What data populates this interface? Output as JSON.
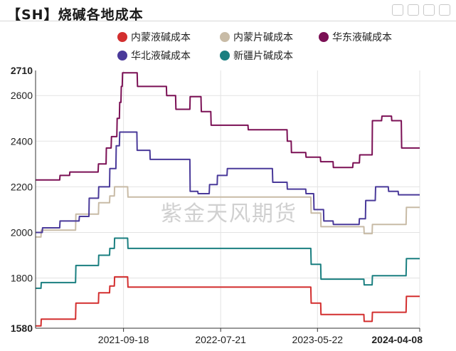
{
  "title": "【SH】烧碱各地成本",
  "watermark": "紫金天风期货",
  "chart_data": {
    "type": "line",
    "ylim": [
      1580,
      2710
    ],
    "y_ticks": [
      1580,
      1800,
      2000,
      2200,
      2400,
      2600,
      2710
    ],
    "x_range": [
      "2020-12-15",
      "2024-04-08"
    ],
    "x_ticks": [
      "2021-09-18",
      "2022-07-21",
      "2023-05-22",
      "2024-04-08"
    ],
    "grid": true,
    "legend_position": "top",
    "series": [
      {
        "name": "内蒙液碱成本",
        "color": "#d32f2f",
        "points": [
          [
            "2020-12-15",
            1590
          ],
          [
            "2021-01-01",
            1590
          ],
          [
            "2021-01-02",
            1620
          ],
          [
            "2021-04-20",
            1620
          ],
          [
            "2021-04-21",
            1690
          ],
          [
            "2021-07-01",
            1690
          ],
          [
            "2021-07-02",
            1735
          ],
          [
            "2021-08-05",
            1735
          ],
          [
            "2021-08-06",
            1765
          ],
          [
            "2021-08-20",
            1765
          ],
          [
            "2021-08-21",
            1805
          ],
          [
            "2021-10-01",
            1805
          ],
          [
            "2021-10-02",
            1760
          ],
          [
            "2023-05-01",
            1760
          ],
          [
            "2023-05-02",
            1690
          ],
          [
            "2023-06-01",
            1690
          ],
          [
            "2023-06-02",
            1640
          ],
          [
            "2023-10-15",
            1640
          ],
          [
            "2023-10-16",
            1610
          ],
          [
            "2023-11-10",
            1610
          ],
          [
            "2023-11-11",
            1650
          ],
          [
            "2024-02-25",
            1650
          ],
          [
            "2024-02-26",
            1720
          ],
          [
            "2024-04-08",
            1720
          ]
        ]
      },
      {
        "name": "内蒙片碱成本",
        "color": "#c8bba6",
        "points": [
          [
            "2020-12-15",
            1980
          ],
          [
            "2021-01-01",
            1980
          ],
          [
            "2021-01-02",
            2010
          ],
          [
            "2021-04-20",
            2010
          ],
          [
            "2021-04-21",
            2080
          ],
          [
            "2021-07-01",
            2080
          ],
          [
            "2021-07-02",
            2130
          ],
          [
            "2021-08-05",
            2130
          ],
          [
            "2021-08-06",
            2160
          ],
          [
            "2021-08-20",
            2160
          ],
          [
            "2021-08-21",
            2200
          ],
          [
            "2021-10-01",
            2200
          ],
          [
            "2021-10-02",
            2155
          ],
          [
            "2023-05-01",
            2155
          ],
          [
            "2023-05-02",
            2085
          ],
          [
            "2023-06-01",
            2085
          ],
          [
            "2023-06-02",
            2025
          ],
          [
            "2023-10-15",
            2025
          ],
          [
            "2023-10-16",
            1995
          ],
          [
            "2023-11-10",
            1995
          ],
          [
            "2023-11-11",
            2035
          ],
          [
            "2024-02-25",
            2035
          ],
          [
            "2024-02-26",
            2110
          ],
          [
            "2024-04-08",
            2110
          ]
        ]
      },
      {
        "name": "华东液碱成本",
        "color": "#7b1055",
        "points": [
          [
            "2020-12-15",
            2230
          ],
          [
            "2021-03-01",
            2230
          ],
          [
            "2021-03-02",
            2250
          ],
          [
            "2021-04-01",
            2250
          ],
          [
            "2021-04-02",
            2265
          ],
          [
            "2021-06-30",
            2265
          ],
          [
            "2021-07-01",
            2300
          ],
          [
            "2021-07-25",
            2300
          ],
          [
            "2021-07-26",
            2370
          ],
          [
            "2021-08-10",
            2370
          ],
          [
            "2021-08-11",
            2420
          ],
          [
            "2021-08-28",
            2420
          ],
          [
            "2021-08-29",
            2500
          ],
          [
            "2021-09-05",
            2500
          ],
          [
            "2021-09-06",
            2570
          ],
          [
            "2021-09-10",
            2570
          ],
          [
            "2021-09-11",
            2640
          ],
          [
            "2021-09-14",
            2640
          ],
          [
            "2021-09-15",
            2700
          ],
          [
            "2021-10-31",
            2700
          ],
          [
            "2021-11-01",
            2640
          ],
          [
            "2022-01-31",
            2640
          ],
          [
            "2022-02-01",
            2600
          ],
          [
            "2022-03-01",
            2600
          ],
          [
            "2022-03-02",
            2540
          ],
          [
            "2022-04-15",
            2540
          ],
          [
            "2022-04-16",
            2595
          ],
          [
            "2022-05-20",
            2595
          ],
          [
            "2022-05-21",
            2530
          ],
          [
            "2022-06-20",
            2530
          ],
          [
            "2022-06-21",
            2470
          ],
          [
            "2022-10-15",
            2470
          ],
          [
            "2022-10-16",
            2450
          ],
          [
            "2023-02-15",
            2450
          ],
          [
            "2023-02-16",
            2400
          ],
          [
            "2023-02-28",
            2400
          ],
          [
            "2023-03-01",
            2350
          ],
          [
            "2023-04-15",
            2350
          ],
          [
            "2023-04-16",
            2330
          ],
          [
            "2023-05-31",
            2330
          ],
          [
            "2023-06-01",
            2310
          ],
          [
            "2023-07-10",
            2310
          ],
          [
            "2023-07-11",
            2285
          ],
          [
            "2023-09-10",
            2285
          ],
          [
            "2023-09-11",
            2305
          ],
          [
            "2023-10-01",
            2305
          ],
          [
            "2023-10-02",
            2340
          ],
          [
            "2023-11-10",
            2340
          ],
          [
            "2023-11-11",
            2490
          ],
          [
            "2023-12-10",
            2490
          ],
          [
            "2023-12-11",
            2510
          ],
          [
            "2024-01-10",
            2510
          ],
          [
            "2024-01-11",
            2490
          ],
          [
            "2024-02-10",
            2490
          ],
          [
            "2024-02-11",
            2370
          ],
          [
            "2024-04-08",
            2370
          ]
        ]
      },
      {
        "name": "华北液碱成本",
        "color": "#4a3a9a",
        "points": [
          [
            "2020-12-15",
            2000
          ],
          [
            "2021-01-05",
            2000
          ],
          [
            "2021-01-06",
            2020
          ],
          [
            "2021-03-01",
            2020
          ],
          [
            "2021-03-02",
            2050
          ],
          [
            "2021-05-01",
            2050
          ],
          [
            "2021-05-02",
            2070
          ],
          [
            "2021-06-01",
            2070
          ],
          [
            "2021-06-02",
            2150
          ],
          [
            "2021-07-01",
            2150
          ],
          [
            "2021-07-02",
            2200
          ],
          [
            "2021-08-05",
            2200
          ],
          [
            "2021-08-06",
            2280
          ],
          [
            "2021-08-25",
            2280
          ],
          [
            "2021-08-26",
            2380
          ],
          [
            "2021-09-05",
            2380
          ],
          [
            "2021-09-06",
            2440
          ],
          [
            "2021-10-30",
            2440
          ],
          [
            "2021-10-31",
            2360
          ],
          [
            "2021-12-10",
            2360
          ],
          [
            "2021-12-11",
            2320
          ],
          [
            "2022-04-15",
            2320
          ],
          [
            "2022-04-16",
            2180
          ],
          [
            "2022-05-10",
            2180
          ],
          [
            "2022-05-11",
            2170
          ],
          [
            "2022-06-15",
            2170
          ],
          [
            "2022-06-16",
            2210
          ],
          [
            "2022-07-10",
            2210
          ],
          [
            "2022-07-11",
            2250
          ],
          [
            "2022-08-10",
            2250
          ],
          [
            "2022-08-11",
            2280
          ],
          [
            "2022-12-31",
            2280
          ],
          [
            "2023-01-01",
            2220
          ],
          [
            "2023-02-15",
            2220
          ],
          [
            "2023-02-16",
            2190
          ],
          [
            "2023-04-15",
            2190
          ],
          [
            "2023-04-16",
            2170
          ],
          [
            "2023-05-10",
            2170
          ],
          [
            "2023-05-11",
            2100
          ],
          [
            "2023-06-10",
            2100
          ],
          [
            "2023-06-11",
            2050
          ],
          [
            "2023-07-10",
            2050
          ],
          [
            "2023-07-11",
            2035
          ],
          [
            "2023-09-30",
            2035
          ],
          [
            "2023-10-01",
            2060
          ],
          [
            "2023-10-20",
            2060
          ],
          [
            "2023-10-21",
            2140
          ],
          [
            "2023-11-20",
            2140
          ],
          [
            "2023-11-21",
            2200
          ],
          [
            "2023-12-31",
            2200
          ],
          [
            "2024-01-01",
            2180
          ],
          [
            "2024-01-31",
            2180
          ],
          [
            "2024-02-01",
            2165
          ],
          [
            "2024-04-08",
            2165
          ]
        ]
      },
      {
        "name": "新疆片碱成本",
        "color": "#1a7f80",
        "points": [
          [
            "2020-12-15",
            1755
          ],
          [
            "2021-01-01",
            1755
          ],
          [
            "2021-01-02",
            1780
          ],
          [
            "2021-04-20",
            1780
          ],
          [
            "2021-04-21",
            1855
          ],
          [
            "2021-07-01",
            1855
          ],
          [
            "2021-07-02",
            1900
          ],
          [
            "2021-08-05",
            1900
          ],
          [
            "2021-08-06",
            1930
          ],
          [
            "2021-08-20",
            1930
          ],
          [
            "2021-08-21",
            1975
          ],
          [
            "2021-10-01",
            1975
          ],
          [
            "2021-10-02",
            1930
          ],
          [
            "2023-05-01",
            1930
          ],
          [
            "2023-05-02",
            1860
          ],
          [
            "2023-06-01",
            1860
          ],
          [
            "2023-06-02",
            1795
          ],
          [
            "2023-10-15",
            1795
          ],
          [
            "2023-10-16",
            1770
          ],
          [
            "2023-11-10",
            1770
          ],
          [
            "2023-11-11",
            1810
          ],
          [
            "2024-02-25",
            1810
          ],
          [
            "2024-02-26",
            1885
          ],
          [
            "2024-04-08",
            1885
          ]
        ]
      }
    ]
  },
  "toolbar_icons": [
    "restore-icon",
    "data-view-icon",
    "zoom-icon",
    "download-icon"
  ]
}
